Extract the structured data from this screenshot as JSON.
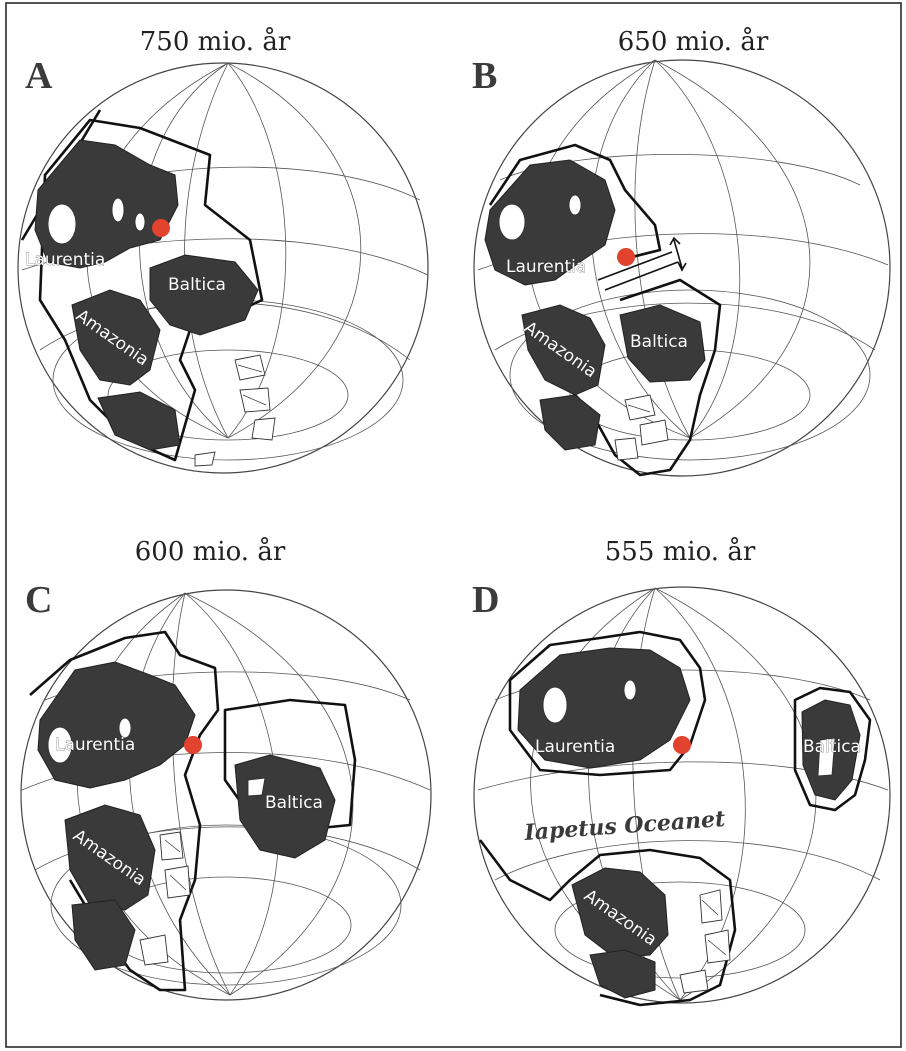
{
  "figure": {
    "panels": [
      {
        "letter": "A",
        "age": "750 mio. år",
        "labels": {
          "laurentia": "Laurentia",
          "baltica": "Baltica",
          "amazonia": "Amazonia"
        }
      },
      {
        "letter": "B",
        "age": "650 mio. år",
        "labels": {
          "laurentia": "Laurentia",
          "baltica": "Baltica",
          "amazonia": "Amazonia"
        }
      },
      {
        "letter": "C",
        "age": "600 mio. år",
        "labels": {
          "laurentia": "Laurentia",
          "baltica": "Baltica",
          "amazonia": "Amazonia"
        }
      },
      {
        "letter": "D",
        "age": "555 mio. år",
        "labels": {
          "laurentia": "Laurentia",
          "baltica": "Baltica",
          "amazonia": "Amazonia",
          "ocean": "Iapetus Oceanet"
        }
      }
    ],
    "colors": {
      "continent": "#3a3a3a",
      "marker": "#e2432f",
      "background": "#ffffff"
    }
  }
}
